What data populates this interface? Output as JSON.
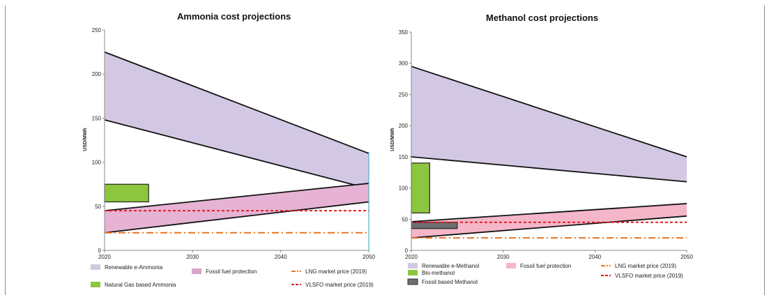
{
  "chart_data": [
    {
      "type": "area",
      "title": "Ammonia cost projections",
      "xlabel": "",
      "ylabel": "USD/MWh",
      "xlim": [
        2020,
        2050
      ],
      "ylim": [
        0,
        250
      ],
      "xticks": [
        "2020",
        "2030",
        "2040",
        "2050"
      ],
      "yticks": [
        "0",
        "50",
        "100",
        "150",
        "200",
        "250"
      ],
      "bands": [
        {
          "name": "Renewable e-Ammonia",
          "color": "#d3c8e4",
          "upper": [
            [
              2020,
              225
            ],
            [
              2050,
              110
            ]
          ],
          "lower": [
            [
              2020,
              148
            ],
            [
              2050,
              70
            ]
          ]
        },
        {
          "name": "Fossil fuel protection",
          "color": "#e6b3d4",
          "upper": [
            [
              2020,
              45
            ],
            [
              2050,
              76
            ]
          ],
          "lower": [
            [
              2020,
              20
            ],
            [
              2050,
              55
            ]
          ]
        }
      ],
      "boxes": [
        {
          "name": "Natural Gas based Ammonia",
          "color": "#8cc63f",
          "x": [
            2020,
            2025
          ],
          "y": [
            55,
            75
          ]
        }
      ],
      "lines": [
        {
          "name": "LNG market price (2019)",
          "color": "#e8731e",
          "style": "dashdot",
          "value": 20
        },
        {
          "name": "VLSFO market price (2019)",
          "color": "#e11b22",
          "style": "dash",
          "value": 45
        }
      ],
      "legend": [
        {
          "label": "Renewable e-Ammonia",
          "kind": "box",
          "color": "#d3c8e4"
        },
        {
          "label": "Fossil fuel protection",
          "kind": "box",
          "color": "#d9a2c8"
        },
        {
          "label": "LNG market price (2019)",
          "kind": "dashdot",
          "color": "#e8731e"
        },
        {
          "label": "Natural Gas based Ammonia",
          "kind": "box",
          "color": "#8cc63f"
        },
        {
          "label": "VLSFO market price (2019)",
          "kind": "dash",
          "color": "#e11b22"
        }
      ]
    },
    {
      "type": "area",
      "title": "Methanol cost projections",
      "xlabel": "",
      "ylabel": "USD/MWh",
      "xlim": [
        2020,
        2050
      ],
      "ylim": [
        0,
        350
      ],
      "xticks": [
        "2020",
        "2030",
        "2040",
        "2050"
      ],
      "yticks": [
        "0",
        "50",
        "100",
        "150",
        "200",
        "250",
        "300",
        "350"
      ],
      "bands": [
        {
          "name": "Renewable e-Methanol",
          "color": "#d3c8e4",
          "upper": [
            [
              2020,
              295
            ],
            [
              2050,
              150
            ]
          ],
          "lower": [
            [
              2020,
              150
            ],
            [
              2050,
              110
            ]
          ]
        },
        {
          "name": "Fossil fuel protection",
          "color": "#f4b6c8",
          "upper": [
            [
              2020,
              46
            ],
            [
              2050,
              75
            ]
          ],
          "lower": [
            [
              2020,
              20
            ],
            [
              2050,
              55
            ]
          ]
        }
      ],
      "boxes": [
        {
          "name": "Bio-methanol",
          "color": "#8cc63f",
          "x": [
            2020,
            2022
          ],
          "y": [
            60,
            140
          ]
        },
        {
          "name": "Fossil based Methanol",
          "color": "#6d6e71",
          "x": [
            2020,
            2025
          ],
          "y": [
            35,
            45
          ]
        }
      ],
      "lines": [
        {
          "name": "LNG market price (2019)",
          "color": "#e8731e",
          "style": "dashdot",
          "value": 20
        },
        {
          "name": "VLSFO market price (2019)",
          "color": "#e11b22",
          "style": "dash",
          "value": 45
        }
      ],
      "legend": [
        {
          "label": "Renewable e-Methanol",
          "kind": "box",
          "color": "#d3c8e4"
        },
        {
          "label": "Fossil fuel protection",
          "kind": "box",
          "color": "#f4b6c8"
        },
        {
          "label": "LNG market price (2019)",
          "kind": "dashdot",
          "color": "#e8731e"
        },
        {
          "label": "Bio-methanol",
          "kind": "box",
          "color": "#8cc63f"
        },
        {
          "label": "VLSFO market price (2019)",
          "kind": "dash",
          "color": "#e11b22"
        },
        {
          "label": "Fossil based Methanol",
          "kind": "box",
          "color": "#6d6e71"
        }
      ]
    }
  ]
}
